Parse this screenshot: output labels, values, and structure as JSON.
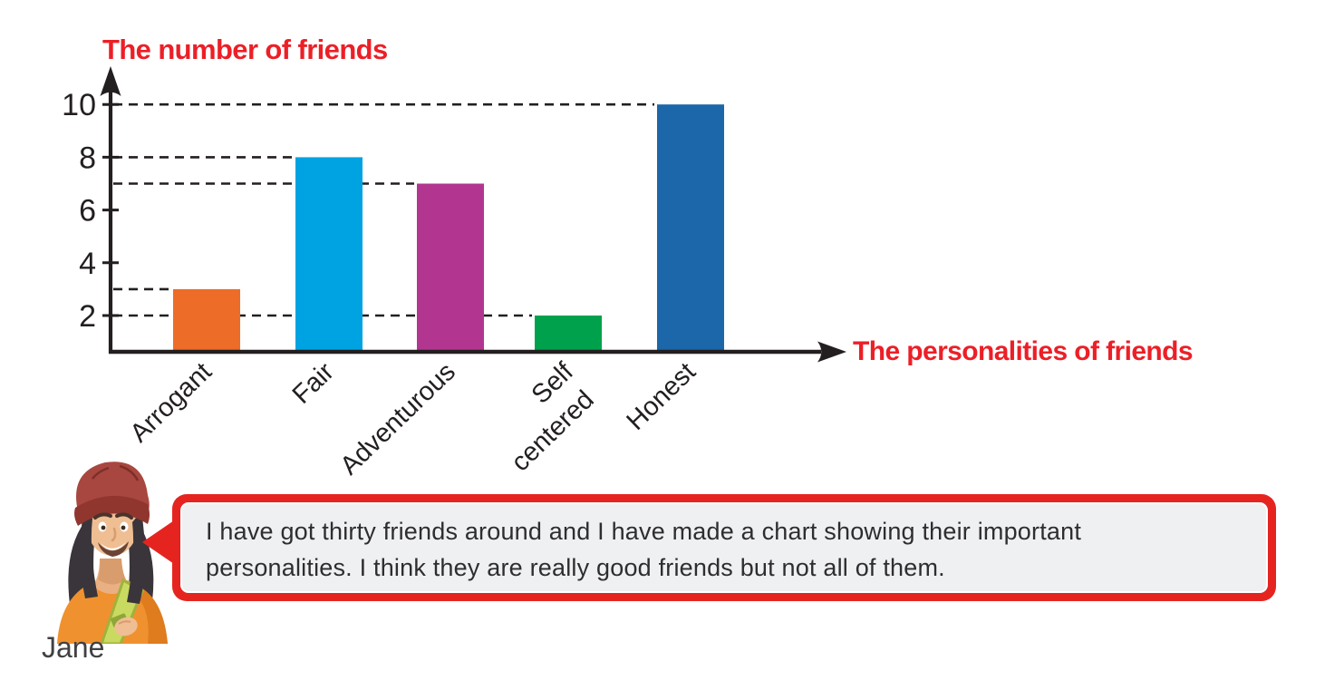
{
  "chart_data": {
    "type": "bar",
    "title": "",
    "ylabel": "The number of friends",
    "xlabel": "The personalities of friends",
    "categories": [
      "Arrogant",
      "Fair",
      "Adventurous",
      "Self centered",
      "Honest"
    ],
    "values": [
      3,
      8,
      7,
      2,
      10
    ],
    "bar_colors": [
      "#ED6C27",
      "#00A3E2",
      "#B23690",
      "#00A14D",
      "#1C67A9"
    ],
    "yticks": [
      2,
      4,
      6,
      8,
      10
    ],
    "ylim": [
      0,
      11
    ],
    "grid": "dashed leader line from y-axis to each bar top-left",
    "legend": "none",
    "axis_color": "#231F20",
    "axis_title_color": "#EC1F27"
  },
  "speech": {
    "speaker": "Jane",
    "lines": [
      "I have got thirty friends around and I have made a chart showing their important",
      "personalities. I think they are really good friends but not all of them."
    ],
    "bubble_border_color": "#E6241F",
    "bubble_fill_color": "#EFF0F2"
  }
}
